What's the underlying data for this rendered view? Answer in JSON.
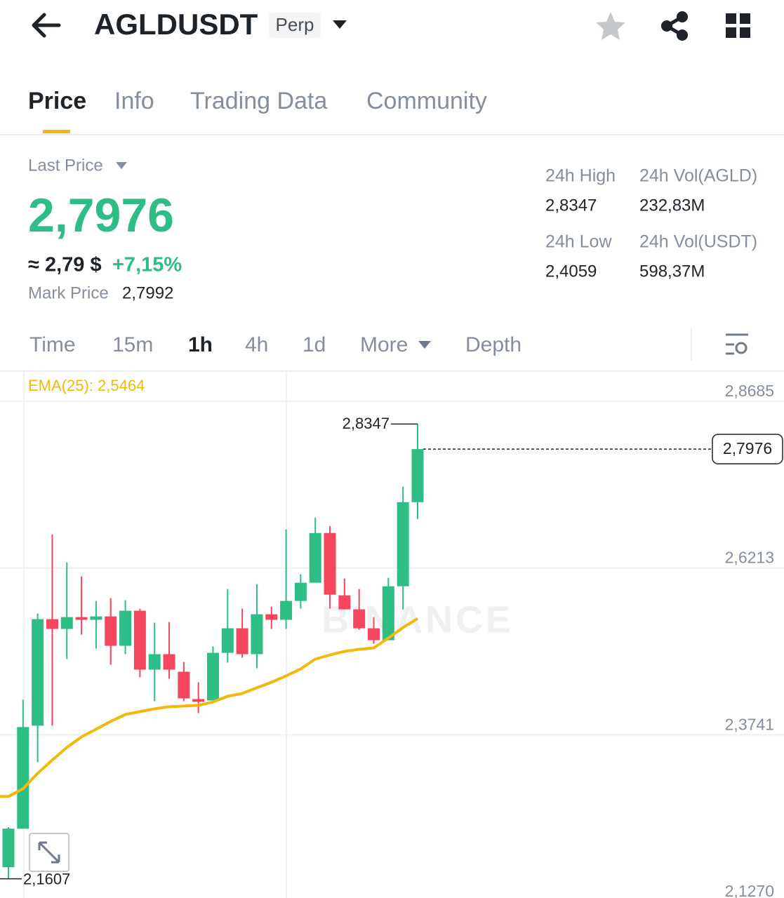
{
  "header": {
    "title": "AGLDUSDT",
    "badge": "Perp"
  },
  "tabs": [
    "Price",
    "Info",
    "Trading Data",
    "Community"
  ],
  "summary": {
    "last_price_label": "Last Price",
    "last_price": "2,7976",
    "approx": "≈ 2,79 $",
    "change": "+7,15%",
    "mark_price_label": "Mark Price",
    "mark_price": "2,7992"
  },
  "stats": [
    {
      "label": "24h High",
      "value": "2,8347"
    },
    {
      "label": "24h Vol(AGLD)",
      "value": "232,83M"
    },
    {
      "label": "24h Low",
      "value": "2,4059"
    },
    {
      "label": "24h Vol(USDT)",
      "value": "598,37M"
    }
  ],
  "intervals": [
    "Time",
    "15m",
    "1h",
    "4h",
    "1d",
    "More",
    "Depth"
  ],
  "chart_data": {
    "type": "candlestick",
    "watermark": "BINANCE",
    "ema_label": "EMA(25): 2,5464",
    "up_color": "#2ebd85",
    "down_color": "#f6465d",
    "ema_color": "#f0b90b",
    "ylim": [
      2.127,
      2.9121
    ],
    "yticks": [
      {
        "value": 2.8685,
        "label": "2,8685"
      },
      {
        "value": 2.6213,
        "label": "2,6213"
      },
      {
        "value": 2.3741,
        "label": "2,3741"
      },
      {
        "value": 2.127,
        "label": "2,1270"
      }
    ],
    "open": [
      2.1778,
      2.235,
      2.3876,
      2.5455,
      2.531,
      2.5486,
      2.5445,
      2.5496,
      2.506,
      2.558,
      2.4707,
      2.4936,
      2.4676,
      2.4271,
      2.425,
      2.4956,
      2.532,
      2.4936,
      2.5528,
      2.5445,
      2.5725,
      2.5995,
      2.6732,
      2.5808,
      2.56,
      2.532,
      2.5143,
      2.5943,
      2.7189
    ],
    "high": [
      2.237,
      2.4261,
      2.5538,
      2.6712,
      2.6296,
      2.6088,
      2.5725,
      2.5767,
      2.5735,
      2.5611,
      2.5403,
      2.5413,
      2.4821,
      2.452,
      2.505,
      2.5902,
      2.5611,
      2.5974,
      2.5642,
      2.6784,
      2.612,
      2.6961,
      2.6836,
      2.6057,
      2.5902,
      2.5486,
      2.6068,
      2.7418,
      2.8347
    ],
    "low": [
      2.1607,
      2.235,
      2.3336,
      2.3876,
      2.4863,
      2.5226,
      2.5019,
      2.478,
      2.4936,
      2.4593,
      2.424,
      2.4572,
      2.424,
      2.4063,
      2.424,
      2.4811,
      2.4884,
      2.4728,
      2.531,
      2.531,
      2.5611,
      2.5995,
      2.5611,
      2.56,
      2.5299,
      2.5091,
      2.5143,
      2.56,
      2.694
    ],
    "close": [
      2.235,
      2.3856,
      2.5455,
      2.531,
      2.5486,
      2.5445,
      2.5496,
      2.506,
      2.558,
      2.4707,
      2.4936,
      2.4707,
      2.4281,
      2.4229,
      2.4956,
      2.532,
      2.4936,
      2.5528,
      2.5445,
      2.5725,
      2.5995,
      2.6732,
      2.5818,
      2.56,
      2.532,
      2.5143,
      2.5943,
      2.7189,
      2.7976
    ],
    "ema": [
      2.2827,
      2.2942,
      2.317,
      2.3367,
      2.3554,
      2.371,
      2.3824,
      2.3939,
      2.4042,
      2.4084,
      2.4126,
      2.4157,
      2.4167,
      2.4177,
      2.4229,
      2.4312,
      2.4354,
      2.4437,
      2.452,
      2.4614,
      2.4718,
      2.4863,
      2.4925,
      2.4977,
      2.5008,
      2.5029,
      2.5175,
      2.533,
      2.5464
    ],
    "high_marker": {
      "value": 2.8347,
      "label": "2,8347"
    },
    "low_marker": {
      "value": 2.1607,
      "label": "2,1607"
    },
    "last_price": {
      "value": 2.7976,
      "label": "2,7976"
    }
  }
}
